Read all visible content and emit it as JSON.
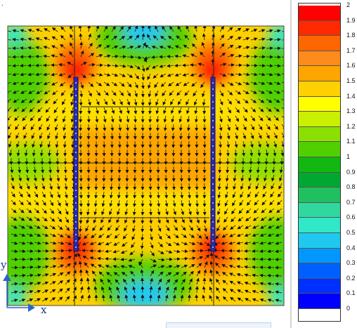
{
  "figure": {
    "axes": {
      "x_label": "x",
      "y_label": "y"
    },
    "corner_mark": "."
  },
  "legend": {
    "ticks": [
      "2",
      "1.9",
      "1.8",
      "1.7",
      "1.6",
      "1.5",
      "1.4",
      "1.3",
      "1.2",
      "1.1",
      "1",
      "0.9",
      "0.8",
      "0.7",
      "0.6",
      "0.5",
      "0.4",
      "0.3",
      "0.2",
      "0.1",
      "0"
    ],
    "colors": [
      "#ff0000",
      "#ff2a00",
      "#ff6600",
      "#ff8c1a",
      "#ffa500",
      "#ffd000",
      "#ffff00",
      "#c8f000",
      "#8ce000",
      "#50d000",
      "#10b810",
      "#00a830",
      "#20c060",
      "#30d8a0",
      "#30e8c8",
      "#20c8f0",
      "#0098ff",
      "#0060ff",
      "#0030ff",
      "#0000ff"
    ]
  },
  "chart_data": {
    "type": "heatmap",
    "title": "",
    "colorbar_range": [
      0,
      2
    ],
    "colorbar_ticks": [
      2,
      1.9,
      1.8,
      1.7,
      1.6,
      1.5,
      1.4,
      1.3,
      1.2,
      1.1,
      1,
      0.9,
      0.8,
      0.7,
      0.6,
      0.5,
      0.4,
      0.3,
      0.2,
      0.1,
      0
    ],
    "axes": {
      "x": "x",
      "y": "y"
    }
  }
}
